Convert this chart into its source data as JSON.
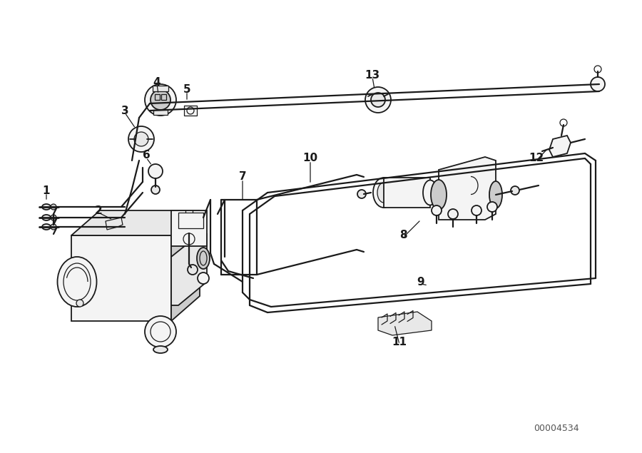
{
  "bg_color": "#ffffff",
  "line_color": "#1a1a1a",
  "label_color": "#000000",
  "diagram_id": "00004534",
  "fig_width": 9.0,
  "fig_height": 6.35,
  "dpi": 100,
  "lw_pipe": 1.6,
  "lw_part": 1.3,
  "lw_thin": 0.9,
  "gray_light": "#e8e8e8",
  "gray_mid": "#cccccc",
  "gray_bg": "#f4f4f4"
}
